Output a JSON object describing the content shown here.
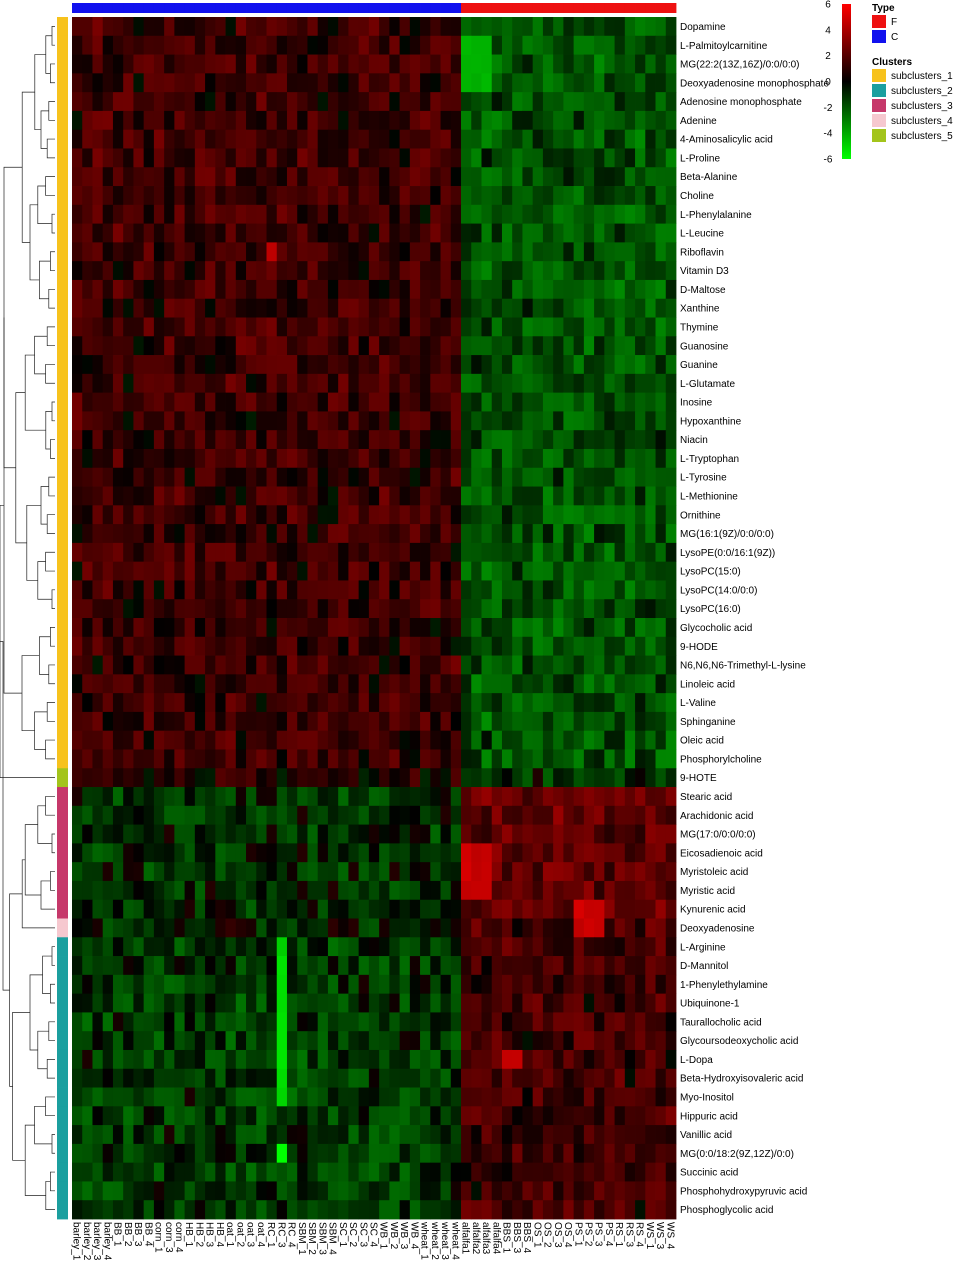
{
  "chart_data": {
    "type": "heatmap",
    "rows": [
      "Dopamine",
      "L-Palmitoylcarnitine",
      "MG(22:2(13Z,16Z)/0:0/0:0)",
      "Deoxyadenosine monophosphate",
      "Adenosine monophosphate",
      "Adenine",
      "4-Aminosalicylic acid",
      "L-Proline",
      "Beta-Alanine",
      "Choline",
      "L-Phenylalanine",
      "L-Leucine",
      "Riboflavin",
      "Vitamin D3",
      "D-Maltose",
      "Xanthine",
      "Thymine",
      "Guanosine",
      "Guanine",
      "L-Glutamate",
      "Inosine",
      "Hypoxanthine",
      "Niacin",
      "L-Tryptophan",
      "L-Tyrosine",
      "L-Methionine",
      "Ornithine",
      "MG(16:1(9Z)/0:0/0:0)",
      "LysoPE(0:0/16:1(9Z))",
      "LysoPC(15:0)",
      "LysoPC(14:0/0:0)",
      "LysoPC(16:0)",
      "Glycocholic acid",
      "9-HODE",
      "N6,N6,N6-Trimethyl-L-lysine",
      "Linoleic acid",
      "L-Valine",
      "Sphinganine",
      "Oleic acid",
      "Phosphorylcholine",
      "9-HOTE",
      "Stearic acid",
      "Arachidonic acid",
      "MG(17:0/0:0/0:0)",
      "Eicosadienoic acid",
      "Myristoleic acid",
      "Myristic acid",
      "Kynurenic acid",
      "Deoxyadenosine",
      "L-Arginine",
      "D-Mannitol",
      "1-Phenylethylamine",
      "Ubiquinone-1",
      "Taurallocholic acid",
      "Glycoursodeoxycholic acid",
      "L-Dopa",
      "Beta-Hydroxyisovaleric acid",
      "Myo-Inositol",
      "Hippuric acid",
      "Vanillic acid",
      "MG(0:0/18:2(9Z,12Z)/0:0)",
      "Succinic acid",
      "Phosphohydroxypyruvic acid",
      "Phosphoglycolic acid"
    ],
    "columns": [
      "barley_1",
      "barley_2",
      "barley_3",
      "barley_4",
      "BB_1",
      "BB_2",
      "BB_3",
      "BB_4",
      "corn_1",
      "corn_3",
      "corn_4",
      "HB_1",
      "HB_2",
      "HB_3",
      "HB_4",
      "oat_1",
      "oat_2",
      "oat_3",
      "oat_4",
      "RC_1",
      "RC_3",
      "RC_4",
      "SBM_1",
      "SBM_2",
      "SBM_3",
      "SBM_4",
      "SC_1",
      "SC_2",
      "SC_3",
      "SC_4",
      "WB_1",
      "WB_2",
      "WB_3",
      "WB_4",
      "wheat_1",
      "wheat_2",
      "wheat_3",
      "wheat_4",
      "alfalfa1",
      "alfalfa2",
      "alfalfa3",
      "alfalfa4",
      "BBS_1",
      "BBS_3",
      "BBS_4",
      "OS_1",
      "OS_2",
      "OS_3",
      "OS_4",
      "PS_1",
      "PS_2",
      "PS_3",
      "PS_4",
      "RS_1",
      "RS_3",
      "RS_4",
      "WS_1",
      "WS_3",
      "WS_4"
    ],
    "column_type": [
      "C",
      "C",
      "C",
      "C",
      "C",
      "C",
      "C",
      "C",
      "C",
      "C",
      "C",
      "C",
      "C",
      "C",
      "C",
      "C",
      "C",
      "C",
      "C",
      "C",
      "C",
      "C",
      "C",
      "C",
      "C",
      "C",
      "C",
      "C",
      "C",
      "C",
      "C",
      "C",
      "C",
      "C",
      "C",
      "C",
      "C",
      "C",
      "F",
      "F",
      "F",
      "F",
      "F",
      "F",
      "F",
      "F",
      "F",
      "F",
      "F",
      "F",
      "F",
      "F",
      "F",
      "F",
      "F",
      "F",
      "F",
      "F",
      "F"
    ],
    "row_cluster": [
      "subclusters_1",
      "subclusters_1",
      "subclusters_1",
      "subclusters_1",
      "subclusters_1",
      "subclusters_1",
      "subclusters_1",
      "subclusters_1",
      "subclusters_1",
      "subclusters_1",
      "subclusters_1",
      "subclusters_1",
      "subclusters_1",
      "subclusters_1",
      "subclusters_1",
      "subclusters_1",
      "subclusters_1",
      "subclusters_1",
      "subclusters_1",
      "subclusters_1",
      "subclusters_1",
      "subclusters_1",
      "subclusters_1",
      "subclusters_1",
      "subclusters_1",
      "subclusters_1",
      "subclusters_1",
      "subclusters_1",
      "subclusters_1",
      "subclusters_1",
      "subclusters_1",
      "subclusters_1",
      "subclusters_1",
      "subclusters_1",
      "subclusters_1",
      "subclusters_1",
      "subclusters_1",
      "subclusters_1",
      "subclusters_1",
      "subclusters_1",
      "subclusters_5",
      "subclusters_3",
      "subclusters_3",
      "subclusters_3",
      "subclusters_3",
      "subclusters_3",
      "subclusters_3",
      "subclusters_3",
      "subclusters_4",
      "subclusters_2",
      "subclusters_2",
      "subclusters_2",
      "subclusters_2",
      "subclusters_2",
      "subclusters_2",
      "subclusters_2",
      "subclusters_2",
      "subclusters_2",
      "subclusters_2",
      "subclusters_2",
      "subclusters_2",
      "subclusters_2",
      "subclusters_2",
      "subclusters_2"
    ],
    "color_scale": {
      "min": -6,
      "max": 6,
      "ticks": [
        6,
        4,
        2,
        0,
        -2,
        -4,
        -6
      ],
      "colors": [
        "#00ff00",
        "#000000",
        "#ff0000"
      ]
    },
    "legend": {
      "type_title": "Type",
      "types": [
        {
          "name": "F",
          "color": "#ee1111"
        },
        {
          "name": "C",
          "color": "#1111ee"
        }
      ],
      "clusters_title": "Clusters",
      "clusters": [
        {
          "name": "subclusters_1",
          "color": "#f7c21c"
        },
        {
          "name": "subclusters_2",
          "color": "#1b9f9f"
        },
        {
          "name": "subclusters_3",
          "color": "#c6386a"
        },
        {
          "name": "subclusters_4",
          "color": "#f6c8cf"
        },
        {
          "name": "subclusters_5",
          "color": "#a3c41b"
        }
      ],
      "placement": "top-right"
    },
    "block_means": [
      {
        "rows": "subclusters_1 (Dopamine to Phosphorylcholine)",
        "C": 1.0,
        "F": -1.5
      },
      {
        "rows": "subclusters_5 (9-HOTE)",
        "C": 0.5,
        "F": -0.8
      },
      {
        "rows": "subclusters_3 (Stearic acid to Kynurenic acid)",
        "C": -0.7,
        "F": 1.8
      },
      {
        "rows": "subclusters_4 (Deoxyadenosine)",
        "C": -0.4,
        "F": 1.3
      },
      {
        "rows": "subclusters_2 (L-Arginine to Phosphoglycolic acid)",
        "C": -0.9,
        "F": 1.1
      }
    ],
    "notable_cells": [
      {
        "rows": [
          "L-Palmitoylcarnitine",
          "MG(22:2(13Z,16Z)/0:0/0:0)",
          "Deoxyadenosine monophosphate"
        ],
        "columns": [
          "alfalfa1",
          "alfalfa2",
          "alfalfa3"
        ],
        "value": -4.0
      },
      {
        "rows": [
          "Myristoleic acid",
          "Myristic acid",
          "Eicosadienoic acid"
        ],
        "columns": [
          "alfalfa1",
          "alfalfa2",
          "alfalfa3"
        ],
        "value": 4.5
      },
      {
        "rows": [
          "Deoxyadenosine",
          "Kynurenic acid"
        ],
        "columns": [
          "PS_1",
          "PS_2",
          "PS_3"
        ],
        "value": 4.5
      },
      {
        "rows": [
          "L-Dopa"
        ],
        "columns": [
          "BBS_1",
          "BBS_3"
        ],
        "value": 4.0
      },
      {
        "rows": [
          "Riboflavin"
        ],
        "columns": [
          "RC_1"
        ],
        "value": 4.0
      },
      {
        "rows": [
          "L-Arginine",
          "D-Mannitol",
          "1-Phenylethylamine",
          "Ubiquinone-1",
          "Taurallocholic acid",
          "Glycoursodeoxycholic acid",
          "L-Dopa",
          "Beta-Hydroxyisovaleric acid",
          "Myo-Inositol"
        ],
        "columns": [
          "RC_3"
        ],
        "value": -5.0
      },
      {
        "rows": [
          "MG(0:0/18:2(9Z,12Z)/0:0)"
        ],
        "columns": [
          "RC_3"
        ],
        "value": -6.0
      }
    ]
  }
}
